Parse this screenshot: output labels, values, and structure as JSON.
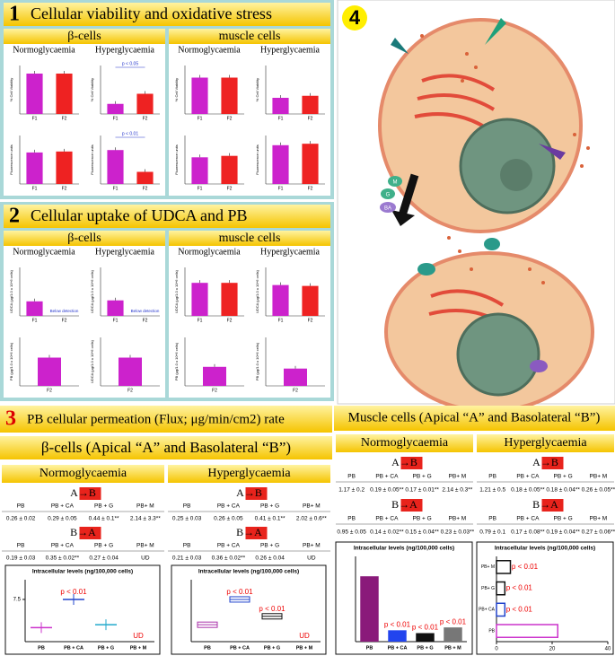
{
  "sections": [
    {
      "number": "1",
      "title": "Cellular viability and oxidative stress",
      "groups": [
        {
          "name": "β-cells",
          "columns": [
            "Normoglycaemia",
            "Hyperglycaemia"
          ],
          "charts": [
            {
              "ylabel": "% Cell Viability",
              "categories": [
                "F1",
                "F2"
              ],
              "values": [
                100,
                100
              ],
              "ylim": [
                0,
                120
              ],
              "colors": [
                "#cc22cc",
                "#ee2222"
              ]
            },
            {
              "ylabel": "% Cell Viability",
              "categories": [
                "F1",
                "F2"
              ],
              "values": [
                25,
                50
              ],
              "ylim": [
                0,
                120
              ],
              "colors": [
                "#cc22cc",
                "#ee2222"
              ],
              "annotation": "p < 0.05"
            },
            {
              "ylabel": "Fluorescence units",
              "categories": [
                "F1",
                "F2"
              ],
              "values": [
                65,
                67
              ],
              "ylim": [
                0,
                100
              ],
              "colors": [
                "#cc22cc",
                "#ee2222"
              ]
            },
            {
              "ylabel": "Fluorescence units",
              "categories": [
                "F1",
                "F2"
              ],
              "values": [
                70,
                25
              ],
              "ylim": [
                0,
                100
              ],
              "colors": [
                "#cc22cc",
                "#ee2222"
              ],
              "annotation": "p < 0.01"
            }
          ]
        },
        {
          "name": "muscle cells",
          "columns": [
            "Normoglycaemia",
            "Hyperglycaemia"
          ],
          "charts": [
            {
              "ylabel": "% Cell Viability",
              "categories": [
                "F1",
                "F2"
              ],
              "values": [
                90,
                90
              ],
              "ylim": [
                0,
                120
              ],
              "colors": [
                "#cc22cc",
                "#ee2222"
              ]
            },
            {
              "ylabel": "% Cell Viability",
              "categories": [
                "F1",
                "F2"
              ],
              "values": [
                40,
                45
              ],
              "ylim": [
                0,
                120
              ],
              "colors": [
                "#cc22cc",
                "#ee2222"
              ]
            },
            {
              "ylabel": "Fluorescence units",
              "categories": [
                "F1",
                "F2"
              ],
              "values": [
                55,
                58
              ],
              "ylim": [
                0,
                100
              ],
              "colors": [
                "#cc22cc",
                "#ee2222"
              ]
            },
            {
              "ylabel": "Fluorescence units",
              "categories": [
                "F1",
                "F2"
              ],
              "values": [
                80,
                83
              ],
              "ylim": [
                0,
                100
              ],
              "colors": [
                "#cc22cc",
                "#ee2222"
              ]
            }
          ]
        }
      ]
    },
    {
      "number": "2",
      "title": "Cellular uptake of UDCA and PB",
      "groups": [
        {
          "name": "β-cells",
          "columns": [
            "Normoglycaemia",
            "Hyperglycaemia"
          ],
          "charts": [
            {
              "ylabel": "UDCA (µg/1.0 x 10^6 cells)",
              "categories": [
                "F1",
                "F2"
              ],
              "values": [
                30,
                null
              ],
              "ylim": [
                0,
                100
              ],
              "colors": [
                "#cc22cc",
                "#ee2222"
              ],
              "notes": [
                null,
                "Below detection"
              ]
            },
            {
              "ylabel": "UDCA (µg/1.0 x 10^6 cells)",
              "categories": [
                "F1",
                "F2"
              ],
              "values": [
                32,
                null
              ],
              "ylim": [
                0,
                100
              ],
              "colors": [
                "#cc22cc",
                "#ee2222"
              ],
              "notes": [
                null,
                "Below detection"
              ]
            },
            {
              "ylabel": "PB (µg/1.0 x 10^6 cells)",
              "categories": [
                "F2"
              ],
              "values": [
                70
              ],
              "ylim": [
                0,
                120
              ],
              "colors": [
                "#cc22cc"
              ]
            },
            {
              "ylabel": "UDCA (µg/1.0 x 10^6 cells)",
              "categories": [
                "F2"
              ],
              "values": [
                70
              ],
              "ylim": [
                0,
                120
              ],
              "colors": [
                "#cc22cc"
              ]
            }
          ]
        },
        {
          "name": "muscle cells",
          "columns": [
            "Normoglycaemia",
            "Hyperglycaemia"
          ],
          "charts": [
            {
              "ylabel": "UDCA (µg/1.0 x 10^6 cells)",
              "categories": [
                "F1",
                "F2"
              ],
              "values": [
                75,
                75
              ],
              "ylim": [
                0,
                110
              ],
              "colors": [
                "#cc22cc",
                "#ee2222"
              ]
            },
            {
              "ylabel": "UDCA (µg/1.0 x 10^6 cells)",
              "categories": [
                "F1",
                "F2"
              ],
              "values": [
                70,
                68
              ],
              "ylim": [
                0,
                110
              ],
              "colors": [
                "#cc22cc",
                "#ee2222"
              ]
            },
            {
              "ylabel": "PB (µg/1.0 x 10^6 cells)",
              "categories": [
                "F2"
              ],
              "values": [
                55
              ],
              "ylim": [
                0,
                140
              ],
              "colors": [
                "#cc22cc"
              ]
            },
            {
              "ylabel": "PB (µg/1.0 x 10^6 cells)",
              "categories": [
                "F2"
              ],
              "values": [
                50
              ],
              "ylim": [
                0,
                140
              ],
              "colors": [
                "#cc22cc"
              ]
            }
          ]
        }
      ]
    }
  ],
  "section3": {
    "number": "3",
    "title": "PB cellular permeation (Flux; μg/min/cm2) rate",
    "beta": {
      "title": "β-cells (Apical “A” and Basolateral “B”)",
      "panels": [
        {
          "title": "Normoglycaemia",
          "ab_label": "A→B",
          "ba_label": "B→A",
          "ab_headers": [
            "PB",
            "PB + CA",
            "PB + G",
            "PB+ M"
          ],
          "ab": [
            "0.26 ± 0.02",
            "0.29 ± 0.05",
            "0.44 ± 0.1**",
            "2.14 ± 3.3**"
          ],
          "ba_headers": [
            "PB",
            "PB + CA",
            "PB + G",
            "PB+ M"
          ],
          "ba": [
            "0.19 ± 0.03",
            "0.35 ± 0.02**",
            "0.27 ± 0.04",
            "UD"
          ],
          "chart": {
            "type": "dot",
            "title": "Intracellular levels (ng/100,000 cells)",
            "categories": [
              "PB",
              "PB + CA",
              "PB + G",
              "PB + M"
            ],
            "values": [
              2.5,
              7.5,
              3,
              null
            ],
            "colors": [
              "#cc33cc",
              "#2244cc",
              "#22aacc",
              "#cc0000"
            ],
            "ylim": [
              0,
              11
            ],
            "yticks": [
              7.5
            ],
            "notes": [
              null,
              "p < 0.01",
              null,
              "UD"
            ]
          }
        },
        {
          "title": "Hyperglycaemia",
          "ab_label": "A→B",
          "ba_label": "B→A",
          "ab_headers": [
            "PB",
            "PB + CA",
            "PB + G",
            "PB+ M"
          ],
          "ab": [
            "0.25 ± 0.03",
            "0.26 ± 0.05",
            "0.41 ± 0.1**",
            "2.02 ± 0.6**"
          ],
          "ba_headers": [
            "PB",
            "PB + CA",
            "PB + G",
            "PB+ M"
          ],
          "ba": [
            "0.21 ± 0.03",
            "0.36 ± 0.02**",
            "0.26 ± 0.04",
            "UD"
          ],
          "chart": {
            "type": "box",
            "title": "Intracellular levels (ng/100,000 cells)",
            "categories": [
              "PB",
              "PB + CA",
              "PB + G",
              "PB + M"
            ],
            "values": [
              3,
              7.5,
              4.5,
              null
            ],
            "colors": [
              "#aa33aa",
              "#2244cc",
              "#111111",
              "#cc0000"
            ],
            "ylim": [
              0,
              11
            ],
            "notes": [
              null,
              "p < 0.01",
              "p < 0.01",
              "UD"
            ]
          }
        }
      ]
    },
    "muscle": {
      "title": "Muscle cells (Apical “A” and Basolateral “B”)",
      "panels": [
        {
          "title": "Normoglycaemia",
          "ab_label": "A→B",
          "ba_label": "B→A",
          "ab_headers": [
            "PB",
            "PB + CA",
            "PB + G",
            "PB+ M"
          ],
          "ab": [
            "1.17 ± 0.2",
            "0.19 ± 0.05**",
            "0.17 ± 0.01**",
            "2.14 ± 0.3**"
          ],
          "ba_headers": [
            "PB",
            "PB + CA",
            "PB + G",
            "PB+ M"
          ],
          "ba": [
            "0.95 ± 0.05",
            "0.14 ± 0.02**",
            "0.15 ± 0.04**",
            "0.23 ± 0.03**"
          ],
          "chart": {
            "type": "bar",
            "title": "Intracellular levels (ng/100,000 cells)",
            "categories": [
              "PB",
              "PB + CA",
              "PB + G",
              "PB + M"
            ],
            "values": [
              23,
              4,
              3,
              5
            ],
            "colors": [
              "#8a1a7a",
              "#2244ee",
              "#111111",
              "#777777"
            ],
            "ylim": [
              0,
              30
            ],
            "notes": [
              null,
              "p < 0.01",
              "p < 0.01",
              "p < 0.01"
            ]
          }
        },
        {
          "title": "Hyperglycaemia",
          "ab_label": "A→B",
          "ba_label": "B→A",
          "ab_headers": [
            "PB",
            "PB + CA",
            "PB + G",
            "PB+ M"
          ],
          "ab": [
            "1.21 ± 0.5",
            "0.18 ± 0.05**",
            "0.18 ± 0.04**",
            "0.26 ± 0.05**"
          ],
          "ba_headers": [
            "PB",
            "PB + CA",
            "PB + G",
            "PB+ M"
          ],
          "ba": [
            "0.79 ± 0.1",
            "0.17 ± 0.08**",
            "0.19 ± 0.04**",
            "0.27 ± 0.06**"
          ],
          "chart": {
            "type": "hbar",
            "title": "Intracellular levels (ng/100,000 cells)",
            "categories": [
              "PB+ M",
              "PB+ G",
              "PB+ CA",
              "PB"
            ],
            "values": [
              5,
              3,
              3,
              22
            ],
            "colors": [
              "#111111",
              "#111111",
              "#2244cc",
              "#cc33cc"
            ],
            "xlim": [
              0,
              40
            ],
            "xticks": [
              0,
              20,
              40
            ],
            "notes": [
              "p < 0.01",
              "p < 0.01",
              "p < 0.01",
              null
            ]
          }
        }
      ]
    }
  },
  "section4": {
    "number": "4",
    "labels": [
      "M",
      "G",
      "BA"
    ]
  }
}
